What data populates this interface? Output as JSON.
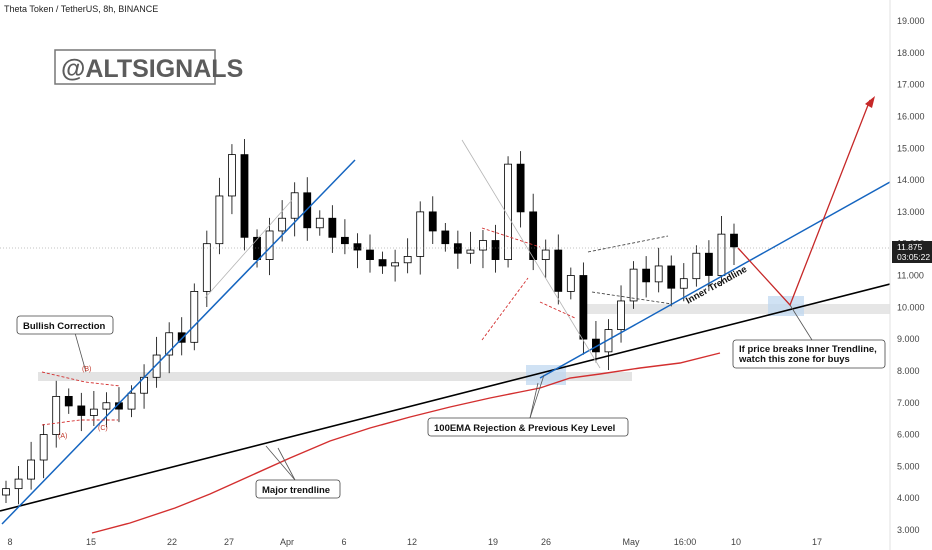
{
  "header": {
    "title": "Theta Token / TetherUS, 8h, BINANCE"
  },
  "watermark": "@ALTSIGNALS",
  "chart_data": {
    "type": "candlestick",
    "symbol": "Theta Token / TetherUS",
    "interval": "8h",
    "exchange": "BINANCE",
    "x_ticks": [
      "8",
      "15",
      "22",
      "27",
      "Apr",
      "6",
      "12",
      "19",
      "26",
      "May",
      "16:00",
      "10",
      "17"
    ],
    "y_ticks": [
      "19.000",
      "18.000",
      "17.000",
      "16.000",
      "15.000",
      "14.000",
      "13.000",
      "12.000",
      "11.000",
      "10.000",
      "9.000",
      "8.000",
      "7.000",
      "6.000",
      "5.000",
      "4.000",
      "3.000"
    ],
    "ylim": [
      3.0,
      19.0
    ],
    "last_price": "11.875",
    "countdown": "03:05:22",
    "colors": {
      "up": "#ffffff",
      "down": "#000000",
      "ema": "#d32f2f",
      "trend_blue": "#1565c0",
      "major": "#000000",
      "zone": "#dddddd",
      "projection": "#c62828"
    },
    "key_zones": [
      {
        "label": "support",
        "low": 7.8,
        "high": 8.1
      },
      {
        "label": "buy zone",
        "low": 9.9,
        "high": 10.1
      }
    ],
    "ema_100": [
      2.9,
      3.4,
      4.2,
      4.8,
      5.3,
      5.7,
      6.2,
      6.6,
      7.1,
      7.5,
      7.8,
      8.0,
      8.4
    ],
    "candles_close": [
      4.3,
      4.6,
      5.2,
      6.0,
      7.2,
      6.9,
      6.6,
      6.8,
      7.0,
      6.8,
      7.3,
      7.8,
      8.5,
      9.2,
      8.9,
      10.5,
      12.0,
      13.5,
      14.8,
      12.2,
      11.5,
      12.4,
      12.8,
      13.6,
      12.5,
      12.8,
      12.2,
      12.0,
      11.8,
      11.5,
      11.3,
      11.4,
      11.6,
      13.0,
      12.4,
      12.0,
      11.7,
      11.8,
      12.1,
      11.5,
      14.5,
      13.0,
      11.5,
      11.8,
      10.5,
      11.0,
      9.0,
      8.6,
      9.3,
      10.2,
      11.2,
      10.8,
      11.3,
      10.6,
      10.9,
      11.7,
      11.0,
      12.3,
      11.9
    ],
    "annotations": [
      "Bullish Correction",
      "(A)",
      "(B)",
      "(C)",
      "Inner Trendline",
      "If price breaks Inner Trendline, watch this zone for buys",
      "100EMA Rejection & Previous Key Level",
      "Major trendline"
    ]
  },
  "labels": {
    "bullish_correction": "Bullish Correction",
    "wave_a": "(A)",
    "wave_b": "(B)",
    "wave_c": "(C)",
    "inner_trendline": "Inner Trendline",
    "zone_note_line1": "If price breaks Inner Trendline,",
    "zone_note_line2": "watch this zone for buys",
    "ema_rejection": "100EMA Rejection & Previous Key Level",
    "major_trendline": "Major trendline"
  }
}
